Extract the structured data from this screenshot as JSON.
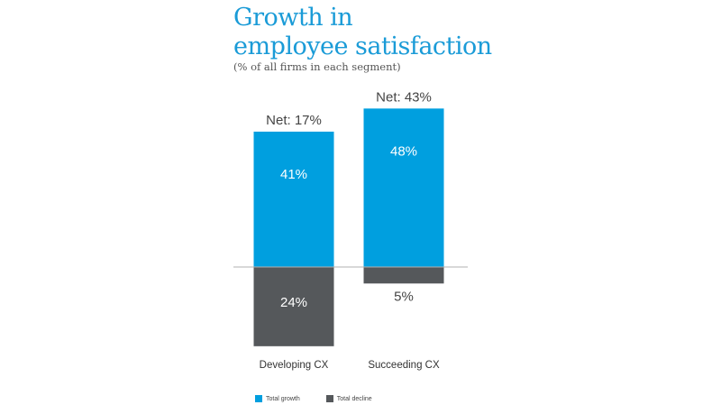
{
  "title_line1": "Growth in",
  "title_line2": "employee satisfaction",
  "subtitle": "(% of all firms in each segment)",
  "colors": {
    "growth": "#009fdf",
    "decline": "#55585b",
    "axis": "#b0b0b0"
  },
  "chart_data": {
    "type": "bar",
    "stacked_diverging": true,
    "categories": [
      "Developing CX",
      "Succeeding CX"
    ],
    "series": [
      {
        "name": "Total growth",
        "values": [
          41,
          48
        ],
        "labels": [
          "41%",
          "48%"
        ]
      },
      {
        "name": "Total decline",
        "values": [
          -24,
          -5
        ],
        "labels": [
          "24%",
          "5%"
        ]
      }
    ],
    "net_labels": [
      "Net: 17%",
      "Net: 43%"
    ],
    "title": "Growth in employee satisfaction",
    "subtitle": "(% of all firms in each segment)",
    "ylim": [
      -24,
      48
    ],
    "legend_position": "bottom"
  }
}
